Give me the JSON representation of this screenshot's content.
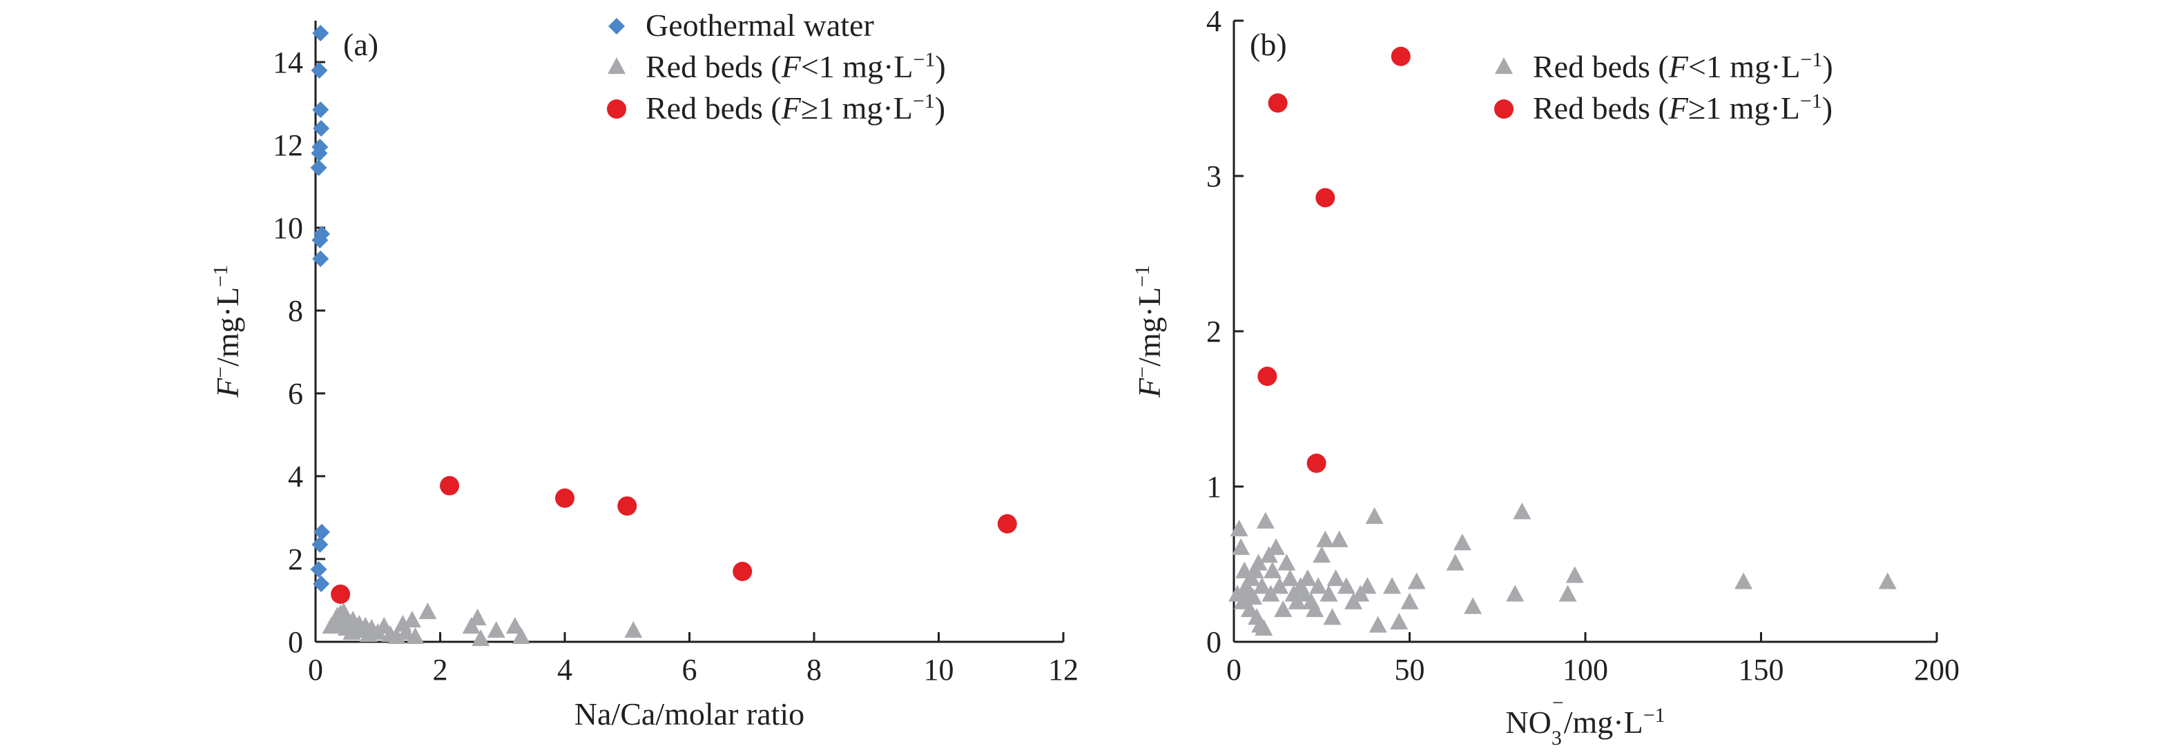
{
  "chart_data": [
    {
      "panel_label": "(a)",
      "type": "scatter",
      "xlabel": "Na/Ca/molar ratio",
      "ylabel_main": "F",
      "ylabel_sup": "−",
      "ylabel_unit": "/mg·L",
      "ylabel_unit_sup": "−1",
      "xlim": [
        0,
        12
      ],
      "ylim": [
        0,
        15
      ],
      "xticks": [
        "0",
        "2",
        "4",
        "6",
        "8",
        "10",
        "12"
      ],
      "yticks": [
        "0",
        "2",
        "4",
        "6",
        "8",
        "10",
        "12",
        "14"
      ],
      "series": [
        {
          "name": "Geothermal water",
          "marker": "diamond",
          "color": "#4a86c8",
          "points": [
            [
              0.08,
              14.7
            ],
            [
              0.06,
              13.8
            ],
            [
              0.08,
              12.85
            ],
            [
              0.09,
              12.4
            ],
            [
              0.07,
              11.95
            ],
            [
              0.06,
              11.8
            ],
            [
              0.05,
              11.45
            ],
            [
              0.1,
              9.85
            ],
            [
              0.07,
              9.7
            ],
            [
              0.08,
              9.25
            ],
            [
              0.1,
              2.65
            ],
            [
              0.07,
              2.35
            ],
            [
              0.05,
              1.75
            ],
            [
              0.09,
              1.4
            ]
          ]
        },
        {
          "name": "Red beds (F<1 mg·L−1)",
          "marker": "triangle",
          "color": "#a7a9ac",
          "points": [
            [
              0.25,
              0.35
            ],
            [
              0.3,
              0.45
            ],
            [
              0.35,
              0.6
            ],
            [
              0.38,
              0.55
            ],
            [
              0.4,
              0.65
            ],
            [
              0.42,
              0.5
            ],
            [
              0.45,
              0.7
            ],
            [
              0.48,
              0.4
            ],
            [
              0.5,
              0.3
            ],
            [
              0.52,
              0.45
            ],
            [
              0.55,
              0.35
            ],
            [
              0.58,
              0.2
            ],
            [
              0.6,
              0.5
            ],
            [
              0.65,
              0.3
            ],
            [
              0.7,
              0.4
            ],
            [
              0.75,
              0.25
            ],
            [
              0.8,
              0.35
            ],
            [
              0.85,
              0.15
            ],
            [
              0.9,
              0.3
            ],
            [
              1.0,
              0.2
            ],
            [
              1.1,
              0.35
            ],
            [
              1.2,
              0.15
            ],
            [
              1.3,
              0.1
            ],
            [
              1.4,
              0.4
            ],
            [
              1.45,
              0.2
            ],
            [
              1.55,
              0.5
            ],
            [
              1.6,
              0.1
            ],
            [
              1.8,
              0.7
            ],
            [
              2.5,
              0.35
            ],
            [
              2.6,
              0.55
            ],
            [
              2.65,
              0.05
            ],
            [
              2.9,
              0.25
            ],
            [
              3.2,
              0.35
            ],
            [
              3.3,
              0.1
            ],
            [
              5.1,
              0.25
            ]
          ]
        },
        {
          "name": "Red beds (F≥1 mg·L−1)",
          "marker": "circle",
          "color": "#e31e24",
          "points": [
            [
              0.4,
              1.15
            ],
            [
              2.15,
              3.77
            ],
            [
              4.0,
              3.47
            ],
            [
              5.0,
              3.28
            ],
            [
              6.85,
              1.7
            ],
            [
              11.1,
              2.85
            ]
          ]
        }
      ],
      "legend": [
        {
          "text": "Geothermal water",
          "parts": [
            [
              "Geothermal water",
              ""
            ]
          ]
        },
        {
          "text": "Red beds (F<1 mg·L−1)",
          "parts": [
            [
              "Red beds (",
              ""
            ],
            [
              "F",
              "i"
            ],
            [
              "<1 mg·L",
              ""
            ],
            [
              "−1",
              "sup"
            ],
            [
              ")",
              ""
            ]
          ]
        },
        {
          "text": "Red beds (F≥1 mg·L−1)",
          "parts": [
            [
              "Red beds (",
              ""
            ],
            [
              "F",
              "i"
            ],
            [
              "≥1 mg·L",
              ""
            ],
            [
              "−1",
              "sup"
            ],
            [
              ")",
              ""
            ]
          ]
        }
      ]
    },
    {
      "panel_label": "(b)",
      "type": "scatter",
      "xlabel_main": "NO",
      "xlabel_sub": "3",
      "xlabel_sup": "−",
      "xlabel_unit": "/mg·L",
      "xlabel_unit_sup": "−1",
      "ylabel_main": "F",
      "ylabel_sup": "−",
      "ylabel_unit": "/mg·L",
      "ylabel_unit_sup": "−1",
      "xlim": [
        0,
        200
      ],
      "ylim": [
        0,
        4
      ],
      "xticks": [
        "0",
        "50",
        "100",
        "150",
        "200"
      ],
      "yticks": [
        "0",
        "1",
        "2",
        "3",
        "4"
      ],
      "series": [
        {
          "name": "Red beds (F<1 mg·L−1)",
          "marker": "triangle",
          "color": "#a7a9ac",
          "points": [
            [
              1,
              0.3
            ],
            [
              1.5,
              0.72
            ],
            [
              2,
              0.6
            ],
            [
              2.5,
              0.25
            ],
            [
              3,
              0.45
            ],
            [
              3.5,
              0.35
            ],
            [
              4,
              0.3
            ],
            [
              4.5,
              0.2
            ],
            [
              5,
              0.4
            ],
            [
              5.5,
              0.28
            ],
            [
              6,
              0.45
            ],
            [
              6.5,
              0.15
            ],
            [
              7,
              0.5
            ],
            [
              7.5,
              0.1
            ],
            [
              8,
              0.35
            ],
            [
              8.5,
              0.08
            ],
            [
              9,
              0.77
            ],
            [
              10,
              0.55
            ],
            [
              10.5,
              0.3
            ],
            [
              11,
              0.45
            ],
            [
              12,
              0.6
            ],
            [
              13,
              0.35
            ],
            [
              14,
              0.2
            ],
            [
              15,
              0.5
            ],
            [
              16,
              0.4
            ],
            [
              17,
              0.3
            ],
            [
              18,
              0.25
            ],
            [
              19,
              0.35
            ],
            [
              20,
              0.3
            ],
            [
              21,
              0.4
            ],
            [
              22,
              0.25
            ],
            [
              23,
              0.2
            ],
            [
              24,
              0.35
            ],
            [
              25,
              0.55
            ],
            [
              26,
              0.65
            ],
            [
              27,
              0.3
            ],
            [
              28,
              0.15
            ],
            [
              29,
              0.4
            ],
            [
              30,
              0.65
            ],
            [
              32,
              0.35
            ],
            [
              34,
              0.25
            ],
            [
              36,
              0.3
            ],
            [
              38,
              0.35
            ],
            [
              40,
              0.8
            ],
            [
              41,
              0.1
            ],
            [
              45,
              0.35
            ],
            [
              47,
              0.12
            ],
            [
              50,
              0.25
            ],
            [
              52,
              0.38
            ],
            [
              63,
              0.5
            ],
            [
              65,
              0.63
            ],
            [
              68,
              0.22
            ],
            [
              80,
              0.3
            ],
            [
              82,
              0.83
            ],
            [
              95,
              0.3
            ],
            [
              97,
              0.42
            ],
            [
              145,
              0.38
            ],
            [
              186,
              0.38
            ]
          ]
        },
        {
          "name": "Red beds (F≥1 mg·L−1)",
          "marker": "circle",
          "color": "#e31e24",
          "points": [
            [
              9.5,
              1.71
            ],
            [
              12.5,
              3.47
            ],
            [
              23.5,
              1.15
            ],
            [
              26,
              2.86
            ],
            [
              47.5,
              3.77
            ]
          ]
        }
      ],
      "legend": [
        {
          "text": "Red beds (F<1 mg·L−1)",
          "parts": [
            [
              "Red beds (",
              ""
            ],
            [
              "F",
              "i"
            ],
            [
              "<1 mg·L",
              ""
            ],
            [
              "−1",
              "sup"
            ],
            [
              ")",
              ""
            ]
          ]
        },
        {
          "text": "Red beds (F≥1 mg·L−1)",
          "parts": [
            [
              "Red beds (",
              ""
            ],
            [
              "F",
              "i"
            ],
            [
              "≥1 mg·L",
              ""
            ],
            [
              "−1",
              "sup"
            ],
            [
              ")",
              ""
            ]
          ]
        }
      ]
    }
  ]
}
